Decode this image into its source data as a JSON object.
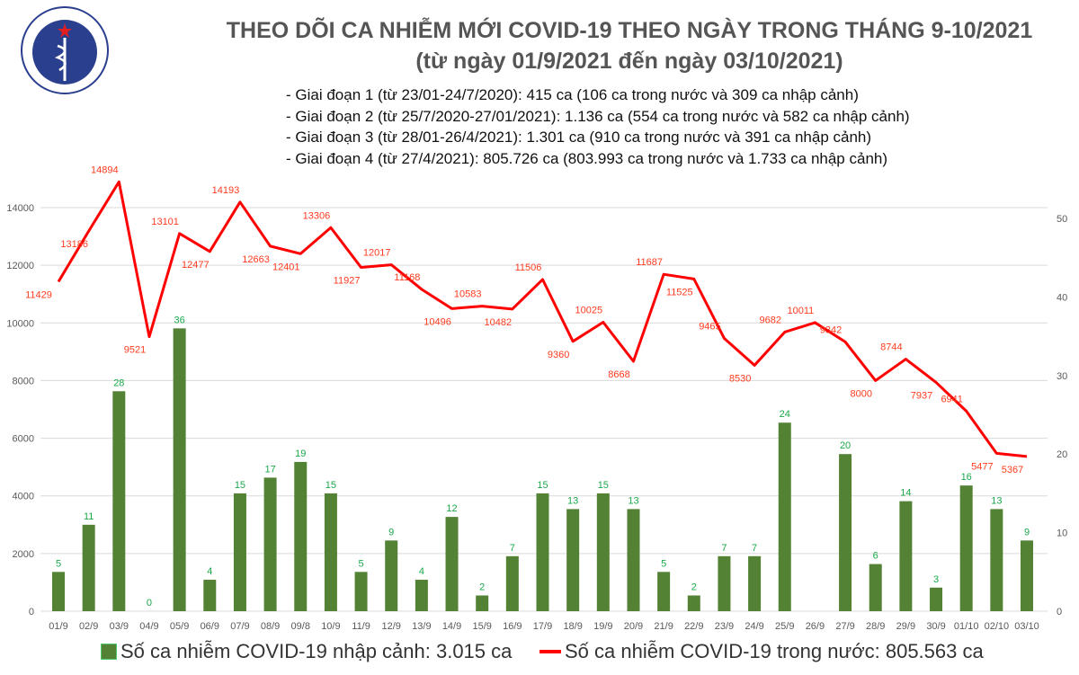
{
  "logo": {
    "text_top": "BỘ Y TẾ",
    "text_bottom": "MINISTRY OF HEALTH"
  },
  "title": "THEO DÕI CA NHIỄM MỚI COVID-19 THEO NGÀY TRONG THÁNG 9-10/2021",
  "subtitle": "(từ ngày 01/9/2021 đến ngày 03/10/2021)",
  "notes": [
    "- Giai đoạn 1 (từ 23/01-24/7/2020): 415 ca (106 ca trong nước và 309 ca nhập cảnh)",
    "- Giai đoạn 2 (từ 25/7/2020-27/01/2021): 1.136 ca (554 ca trong nước và 582 ca nhập cảnh)",
    "- Giai đoạn 3 (từ 28/01-26/4/2021): 1.301 ca (910 ca trong nước và 391 ca nhập cảnh)",
    "- Giai đoạn 4 (từ 27/4/2021): 805.726 ca (803.993 ca trong nước và 1.733 ca nhập cảnh)"
  ],
  "chart_data": {
    "type": "bar+line",
    "categories": [
      "01/9",
      "02/9",
      "03/9",
      "04/9",
      "05/9",
      "06/9",
      "07/9",
      "08/9",
      "09/8",
      "10/9",
      "11/9",
      "12/9",
      "13/9",
      "14/9",
      "15/9",
      "16/9",
      "17/9",
      "18/9",
      "19/9",
      "20/9",
      "21/9",
      "22/9",
      "23/9",
      "24/9",
      "25/9",
      "26/9",
      "27/9",
      "28/9",
      "29/9",
      "30/9",
      "01/10",
      "02/10",
      "03/10"
    ],
    "series": [
      {
        "name": "Số ca nhiễm COVID-19 nhập cảnh: 3.015 ca",
        "type": "bar",
        "axis": "right",
        "color": "#548235",
        "values": [
          5,
          11,
          28,
          0,
          36,
          4,
          15,
          17,
          19,
          15,
          5,
          9,
          4,
          12,
          2,
          7,
          15,
          13,
          15,
          13,
          5,
          2,
          7,
          7,
          24,
          null,
          20,
          6,
          14,
          3,
          16,
          13,
          9
        ]
      },
      {
        "name": "Số ca nhiễm COVID-19 trong nước: 805.563 ca",
        "type": "line",
        "axis": "left",
        "color": "#ff0000",
        "values": [
          11429,
          13186,
          14894,
          9521,
          13101,
          12477,
          14193,
          12663,
          12401,
          13306,
          11927,
          12017,
          11168,
          10496,
          10583,
          10482,
          11506,
          9360,
          10025,
          8668,
          11687,
          11525,
          9465,
          8530,
          9682,
          10011,
          9342,
          8000,
          8744,
          7937,
          6941,
          5477,
          5367
        ]
      }
    ],
    "left_axis": {
      "ylim": [
        0,
        14000
      ],
      "ticks": [
        0,
        2000,
        4000,
        6000,
        8000,
        10000,
        12000,
        14000
      ]
    },
    "right_axis": {
      "ylim": [
        0,
        50
      ],
      "ticks": [
        0,
        10,
        20,
        30,
        40,
        50
      ]
    },
    "grid": true,
    "legend_position": "bottom"
  }
}
